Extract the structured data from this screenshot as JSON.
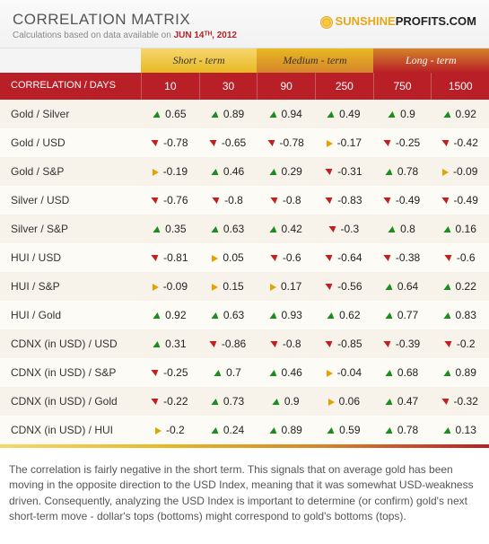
{
  "header": {
    "title": "CORRELATION MATRIX",
    "subtitle_prefix": "Calculations based on data available on ",
    "date": "JUN 14ᵀᴴ, 2012",
    "logo_sun": "SUNSHINE",
    "logo_rest": "PROFITS.COM"
  },
  "terms": [
    {
      "label": "Short - term",
      "class": "short"
    },
    {
      "label": "Medium - term",
      "class": "medium"
    },
    {
      "label": "Long - term",
      "class": "long"
    }
  ],
  "head_label": "CORRELATION / DAYS",
  "columns": [
    "10",
    "30",
    "90",
    "250",
    "750",
    "1500"
  ],
  "rows": [
    {
      "label": "Gold / Silver",
      "cells": [
        {
          "a": "up",
          "v": "0.65"
        },
        {
          "a": "up",
          "v": "0.89"
        },
        {
          "a": "up",
          "v": "0.94"
        },
        {
          "a": "up",
          "v": "0.49"
        },
        {
          "a": "up",
          "v": "0.9"
        },
        {
          "a": "up",
          "v": "0.92"
        }
      ]
    },
    {
      "label": "Gold / USD",
      "cells": [
        {
          "a": "down",
          "v": "-0.78"
        },
        {
          "a": "down",
          "v": "-0.65"
        },
        {
          "a": "down",
          "v": "-0.78"
        },
        {
          "a": "flat",
          "v": "-0.17"
        },
        {
          "a": "down",
          "v": "-0.25"
        },
        {
          "a": "down",
          "v": "-0.42"
        }
      ]
    },
    {
      "label": "Gold / S&P",
      "cells": [
        {
          "a": "flat",
          "v": "-0.19"
        },
        {
          "a": "up",
          "v": "0.46"
        },
        {
          "a": "up",
          "v": "0.29"
        },
        {
          "a": "down",
          "v": "-0.31"
        },
        {
          "a": "up",
          "v": "0.78"
        },
        {
          "a": "flat",
          "v": "-0.09"
        }
      ]
    },
    {
      "label": "Silver / USD",
      "cells": [
        {
          "a": "down",
          "v": "-0.76"
        },
        {
          "a": "down",
          "v": "-0.8"
        },
        {
          "a": "down",
          "v": "-0.8"
        },
        {
          "a": "down",
          "v": "-0.83"
        },
        {
          "a": "down",
          "v": "-0.49"
        },
        {
          "a": "down",
          "v": "-0.49"
        }
      ]
    },
    {
      "label": "Silver / S&P",
      "cells": [
        {
          "a": "up",
          "v": "0.35"
        },
        {
          "a": "up",
          "v": "0.63"
        },
        {
          "a": "up",
          "v": "0.42"
        },
        {
          "a": "down",
          "v": "-0.3"
        },
        {
          "a": "up",
          "v": "0.8"
        },
        {
          "a": "up",
          "v": "0.16"
        }
      ]
    },
    {
      "label": "HUI / USD",
      "cells": [
        {
          "a": "down",
          "v": "-0.81"
        },
        {
          "a": "flat",
          "v": "0.05"
        },
        {
          "a": "down",
          "v": "-0.6"
        },
        {
          "a": "down",
          "v": "-0.64"
        },
        {
          "a": "down",
          "v": "-0.38"
        },
        {
          "a": "down",
          "v": "-0.6"
        }
      ]
    },
    {
      "label": "HUI / S&P",
      "cells": [
        {
          "a": "flat",
          "v": "-0.09"
        },
        {
          "a": "flat",
          "v": "0.15"
        },
        {
          "a": "flat",
          "v": "0.17"
        },
        {
          "a": "down",
          "v": "-0.56"
        },
        {
          "a": "up",
          "v": "0.64"
        },
        {
          "a": "up",
          "v": "0.22"
        }
      ]
    },
    {
      "label": "HUI / Gold",
      "cells": [
        {
          "a": "up",
          "v": "0.92"
        },
        {
          "a": "up",
          "v": "0.63"
        },
        {
          "a": "up",
          "v": "0.93"
        },
        {
          "a": "up",
          "v": "0.62"
        },
        {
          "a": "up",
          "v": "0.77"
        },
        {
          "a": "up",
          "v": "0.83"
        }
      ]
    },
    {
      "label": "CDNX (in USD) / USD",
      "cells": [
        {
          "a": "up",
          "v": "0.31"
        },
        {
          "a": "down",
          "v": "-0.86"
        },
        {
          "a": "down",
          "v": "-0.8"
        },
        {
          "a": "down",
          "v": "-0.85"
        },
        {
          "a": "down",
          "v": "-0.39"
        },
        {
          "a": "down",
          "v": "-0.2"
        }
      ]
    },
    {
      "label": "CDNX (in USD) / S&P",
      "cells": [
        {
          "a": "down",
          "v": "-0.25"
        },
        {
          "a": "up",
          "v": "0.7"
        },
        {
          "a": "up",
          "v": "0.46"
        },
        {
          "a": "flat",
          "v": "-0.04"
        },
        {
          "a": "up",
          "v": "0.68"
        },
        {
          "a": "up",
          "v": "0.89"
        }
      ]
    },
    {
      "label": "CDNX (in USD) / Gold",
      "cells": [
        {
          "a": "down",
          "v": "-0.22"
        },
        {
          "a": "up",
          "v": "0.73"
        },
        {
          "a": "up",
          "v": "0.9"
        },
        {
          "a": "flat",
          "v": "0.06"
        },
        {
          "a": "up",
          "v": "0.47"
        },
        {
          "a": "down",
          "v": "-0.32"
        }
      ]
    },
    {
      "label": "CDNX (in USD) / HUI",
      "cells": [
        {
          "a": "flat",
          "v": "-0.2"
        },
        {
          "a": "up",
          "v": "0.24"
        },
        {
          "a": "up",
          "v": "0.89"
        },
        {
          "a": "up",
          "v": "0.59"
        },
        {
          "a": "up",
          "v": "0.78"
        },
        {
          "a": "up",
          "v": "0.13"
        }
      ]
    }
  ],
  "caption": "The correlation is fairly negative in the short term. This signals that on average gold has been moving in the opposite direction to the USD Index, meaning that it was somewhat USD-weakness driven. Consequently, analyzing the USD Index is important to determine (or confirm) gold's next short-term move - dollar's tops (bottoms) might correspond to gold's bottoms (tops)."
}
